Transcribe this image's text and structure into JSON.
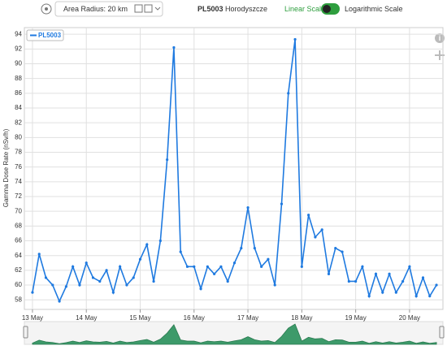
{
  "toolbar": {
    "radius_label": "Area Radius: 20 km",
    "station_id": "PL5003",
    "station_name": "Horodyszcze",
    "linear_label": "Linear Scale",
    "log_label": "Logarithmic Scale"
  },
  "chart_data": {
    "type": "line",
    "y_label": "Gamma Dose Rate (nSv/h)",
    "grid": true,
    "legend": "top-left",
    "x": [
      0,
      0.125,
      0.25,
      0.375,
      0.5,
      0.625,
      0.75,
      0.875,
      1,
      1.125,
      1.25,
      1.375,
      1.5,
      1.625,
      1.75,
      1.875,
      2,
      2.125,
      2.25,
      2.375,
      2.5,
      2.625,
      2.75,
      2.875,
      3,
      3.125,
      3.25,
      3.375,
      3.5,
      3.625,
      3.75,
      3.875,
      4,
      4.125,
      4.25,
      4.375,
      4.5,
      4.625,
      4.75,
      4.875,
      5,
      5.125,
      5.25,
      5.375,
      5.5,
      5.625,
      5.75,
      5.875,
      6,
      6.125,
      6.25,
      6.375,
      6.5,
      6.625,
      6.75,
      6.875,
      7,
      7.125,
      7.25,
      7.375,
      7.5
    ],
    "series": [
      {
        "name": "PL5003",
        "color": "#1f7ae0",
        "values": [
          59.0,
          64.2,
          61.0,
          60.0,
          57.8,
          59.8,
          62.5,
          60.0,
          63.0,
          61.0,
          60.5,
          62.0,
          59.0,
          62.5,
          60.0,
          61.0,
          63.5,
          65.5,
          60.5,
          66.0,
          77.0,
          92.2,
          64.5,
          62.5,
          62.5,
          59.5,
          62.5,
          61.5,
          62.5,
          60.5,
          63.0,
          65.0,
          70.5,
          65.0,
          62.5,
          63.5,
          60.0,
          71.0,
          86.0,
          93.3,
          62.5,
          69.5,
          66.5,
          67.5,
          61.5,
          65.0,
          64.5,
          60.5,
          60.5,
          62.5,
          58.5,
          61.5,
          59.0,
          61.5,
          59.0,
          60.5,
          62.5,
          58.5,
          61.0,
          58.5,
          60.0
        ]
      }
    ],
    "xlim": [
      -0.15,
      7.62
    ],
    "xticks": [
      {
        "value": 0,
        "label": "13 May"
      },
      {
        "value": 1,
        "label": "14 May"
      },
      {
        "value": 2,
        "label": "15 May"
      },
      {
        "value": 3,
        "label": "16 May"
      },
      {
        "value": 4,
        "label": "17 May"
      },
      {
        "value": 5,
        "label": "18 May"
      },
      {
        "value": 6,
        "label": "19 May"
      },
      {
        "value": 7,
        "label": "20 May"
      }
    ],
    "ylim": [
      56.7,
      94.9
    ],
    "yticks": [
      58,
      60,
      62,
      64,
      66,
      68,
      70,
      72,
      74,
      76,
      78,
      80,
      82,
      84,
      86,
      88,
      90,
      92,
      94
    ]
  }
}
